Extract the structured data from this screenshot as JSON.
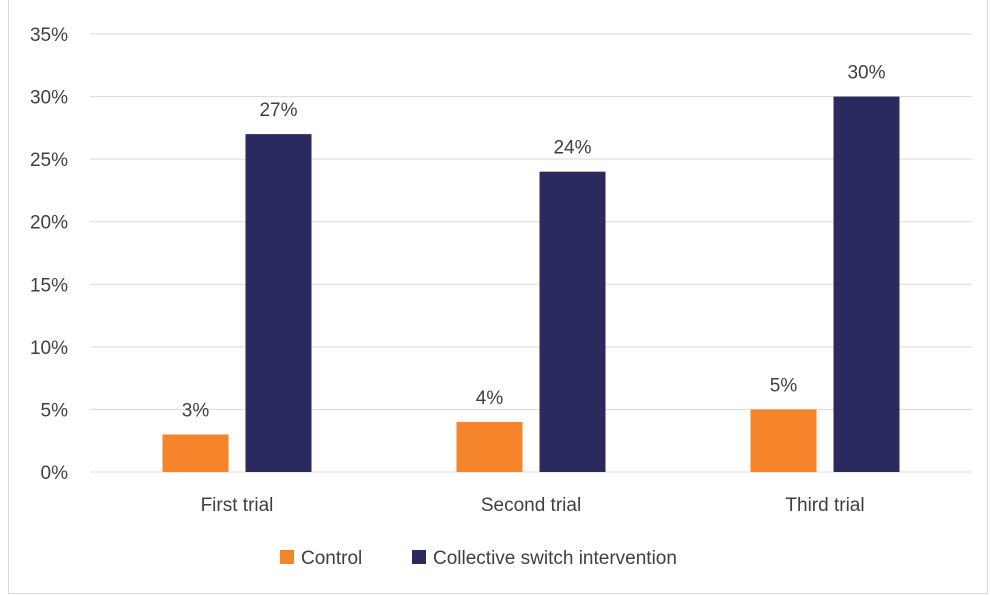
{
  "chart_data": {
    "type": "bar",
    "categories": [
      "First trial",
      "Second trial",
      "Third trial"
    ],
    "series": [
      {
        "name": "Control",
        "values": [
          3,
          4,
          5
        ],
        "labels": [
          "3%",
          "4%",
          "5%"
        ],
        "color": "#f5842a"
      },
      {
        "name": "Collective switch intervention",
        "values": [
          27,
          24,
          30
        ],
        "labels": [
          "27%",
          "24%",
          "30%"
        ],
        "color": "#2a2a5e"
      }
    ],
    "ylim": [
      0,
      35
    ],
    "yticks": [
      0,
      5,
      10,
      15,
      20,
      25,
      30,
      35
    ],
    "ytick_labels": [
      "0%",
      "5%",
      "10%",
      "15%",
      "20%",
      "25%",
      "30%",
      "35%"
    ],
    "grid": true,
    "legend_position": "bottom",
    "gridline_color": "#d9d9d9"
  }
}
